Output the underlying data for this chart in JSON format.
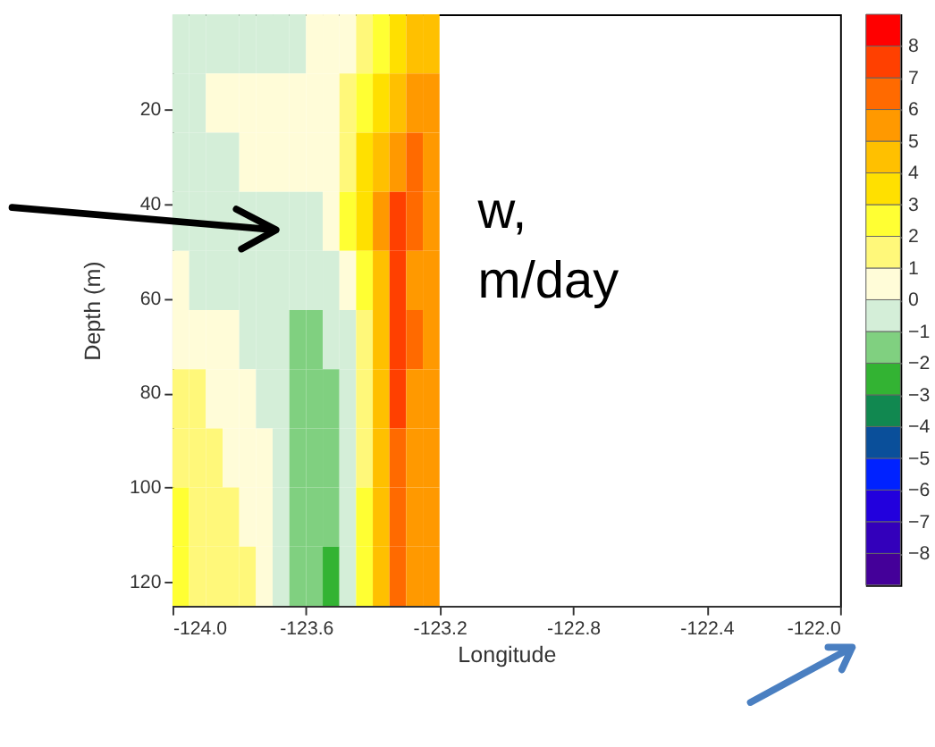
{
  "chart_data": {
    "type": "heatmap",
    "xlabel": "Longitude",
    "ylabel": "Depth (m)",
    "annotations": [
      "w, m/day"
    ],
    "x": [
      -123.975,
      -123.925,
      -123.875,
      -123.825,
      -123.775,
      -123.725,
      -123.675,
      -123.625,
      -123.575,
      -123.525,
      -123.475,
      -123.425,
      -123.375,
      -123.325,
      -123.275,
      -123.225
    ],
    "y": [
      6.25,
      18.75,
      31.25,
      43.75,
      56.25,
      68.75,
      81.25,
      93.75,
      106.25,
      118.75
    ],
    "cells": [
      [
        -0.5,
        -0.5,
        -0.5,
        -0.5,
        -0.5,
        -0.5,
        -0.5,
        -0.5,
        0.5,
        0.5,
        0.5,
        1.5,
        2.5,
        3.5,
        4.5,
        4.5
      ],
      [
        -0.5,
        -0.5,
        0.5,
        0.5,
        0.5,
        0.5,
        0.5,
        0.5,
        0.5,
        0.5,
        1.5,
        2.5,
        3.5,
        4.5,
        5.5,
        5.5
      ],
      [
        -0.5,
        -0.5,
        -0.5,
        -0.5,
        0.5,
        0.5,
        0.5,
        0.5,
        0.5,
        0.5,
        1.5,
        3.5,
        4.5,
        5.5,
        6.5,
        5.5
      ],
      [
        -0.5,
        -0.5,
        -0.5,
        -0.5,
        -0.5,
        -0.5,
        -0.5,
        -0.5,
        -0.5,
        0.5,
        2.5,
        3.5,
        5.5,
        7.5,
        6.5,
        5.5
      ],
      [
        0.5,
        -0.5,
        -0.5,
        -0.5,
        -0.5,
        -0.5,
        -0.5,
        -0.5,
        -0.5,
        -0.5,
        0.5,
        2.5,
        4.5,
        7.5,
        5.5,
        5.5
      ],
      [
        0.5,
        0.5,
        0.5,
        0.5,
        -0.5,
        -0.5,
        -0.5,
        -1.5,
        -1.5,
        -0.5,
        -0.5,
        1.5,
        4.5,
        7.5,
        6.5,
        5.5
      ],
      [
        1.5,
        1.5,
        0.5,
        0.5,
        0.5,
        -0.5,
        -0.5,
        -1.5,
        -1.5,
        -1.5,
        -0.5,
        1.5,
        4.5,
        7.5,
        5.5,
        5.5
      ],
      [
        1.5,
        1.5,
        1.5,
        0.5,
        0.5,
        0.5,
        -0.5,
        -1.5,
        -1.5,
        -1.5,
        -0.5,
        1.5,
        4.5,
        6.5,
        5.5,
        5.5
      ],
      [
        2.5,
        1.5,
        1.5,
        1.5,
        0.5,
        0.5,
        -0.5,
        -1.5,
        -1.5,
        -1.5,
        -0.5,
        2.5,
        4.5,
        6.5,
        5.5,
        5.5
      ],
      [
        2.5,
        1.5,
        1.5,
        1.5,
        1.5,
        0.5,
        -0.5,
        -1.5,
        -1.5,
        -2.5,
        -0.5,
        2.5,
        4.5,
        6.5,
        5.5,
        5.5
      ]
    ],
    "colors": [
      "#440099",
      "#3300bb",
      "#2200dd",
      "#0022ff",
      "#0a4f9a",
      "#118850",
      "#33b333",
      "#80d080",
      "#d4eed8",
      "#fffcd8",
      "#fff87a",
      "#ffff33",
      "#ffe000",
      "#ffc000",
      "#ff9900",
      "#ff6a00",
      "#ff4000",
      "#ff0000"
    ],
    "clim": [
      -9,
      9
    ],
    "cticks": [
      -8,
      -7,
      -6,
      -5,
      -4,
      -3,
      -2,
      -1,
      0,
      1,
      2,
      3,
      4,
      5,
      6,
      7,
      8
    ],
    "xlim": [
      -124,
      -122
    ],
    "xticks": [
      {
        "value": -124,
        "label": "-124.0"
      },
      {
        "value": -123.6,
        "label": "-123.6"
      },
      {
        "value": -123.2,
        "label": "-123.2"
      },
      {
        "value": -122.8,
        "label": "-122.8"
      },
      {
        "value": -122.4,
        "label": "-122.4"
      },
      {
        "value": -122,
        "label": "-122.0"
      }
    ],
    "ylim": [
      125,
      0
    ],
    "yticks": [
      20,
      40,
      60,
      80,
      100,
      120
    ],
    "grid": false
  }
}
